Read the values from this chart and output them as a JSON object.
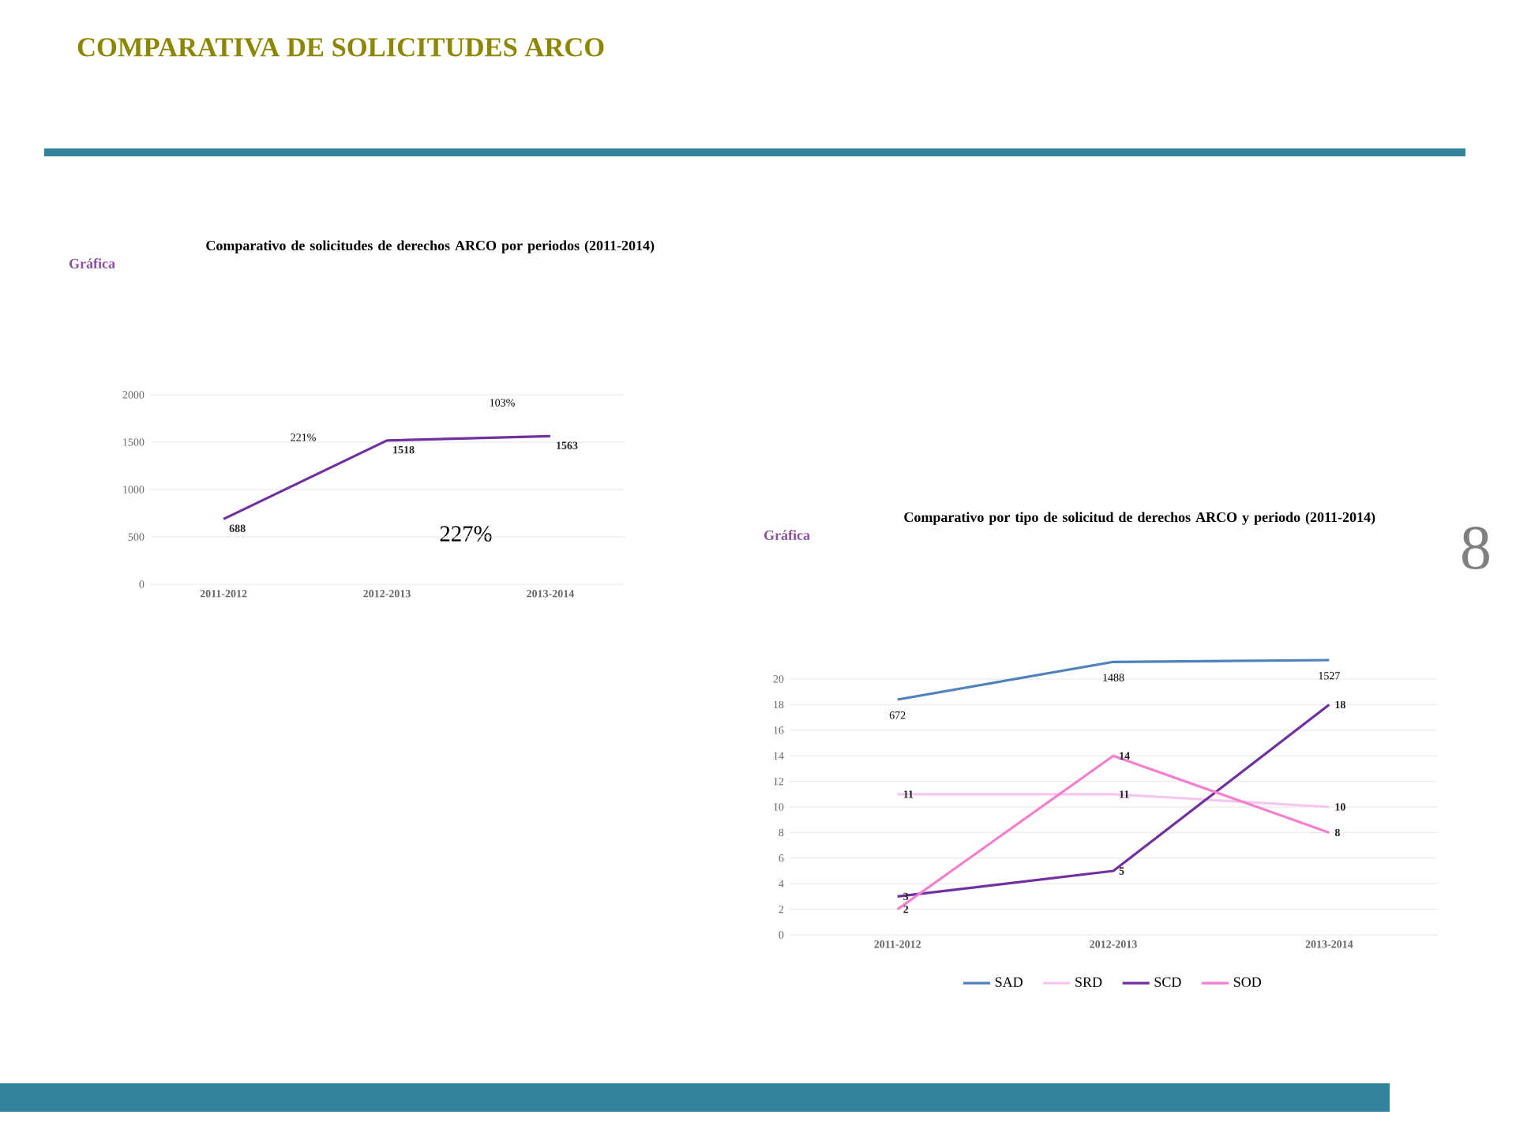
{
  "chart_data": [
    {
      "type": "line",
      "title": "Comparativo de solicitudes de derechos ARCO por periodos (2011-2014)",
      "subtitle": "Gráfica",
      "categories": [
        "2011-2012",
        "2012-2013",
        "2013-2014"
      ],
      "values": [
        688,
        1518,
        1563
      ],
      "color": "#7030a0",
      "ylim": [
        0,
        2000
      ],
      "yticks": [
        0,
        500,
        1000,
        1500,
        2000
      ],
      "grid": "y",
      "data_labels": true,
      "marker": "none",
      "annotations": [
        "COMPARATIVA DE SOLICITUDES ARCO",
        "221%",
        "103%",
        "227%"
      ]
    },
    {
      "type": "line",
      "title": "Comparativo por tipo de solicitud de derechos ARCO y periodo (2011-2014)",
      "subtitle": "Gráfica",
      "categories": [
        "2011-2012",
        "2012-2013",
        "2013-2014"
      ],
      "series": [
        {
          "name": "SAD",
          "color": "#4f81bd",
          "values": [
            672,
            1488,
            1527
          ],
          "axis": "y2"
        },
        {
          "name": "SRD",
          "color": "#f5c6f0",
          "values": [
            11,
            11,
            10
          ]
        },
        {
          "name": "SCD",
          "color": "#7030a0",
          "values": [
            3,
            5,
            18
          ]
        },
        {
          "name": "SOD",
          "color": "#f57fcf",
          "values": [
            2,
            14,
            8
          ]
        }
      ],
      "ylim": [
        0,
        20
      ],
      "yticks": [
        0,
        2,
        4,
        6,
        8,
        10,
        12,
        14,
        16,
        18,
        20
      ],
      "grid": "y",
      "legend": "bottom",
      "data_labels": true,
      "marker": "none",
      "annotations": [
        "8"
      ]
    }
  ]
}
